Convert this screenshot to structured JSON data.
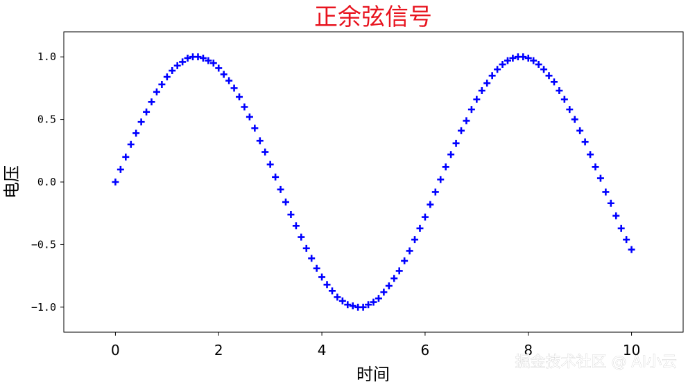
{
  "chart_data": {
    "type": "scatter",
    "title": "正余弦信号",
    "xlabel": "时间",
    "ylabel": "电压",
    "marker": "+",
    "color": "#0000ff",
    "title_color": "#e8141f",
    "xlim": [
      -1.0,
      11.0
    ],
    "ylim": [
      -1.2,
      1.2
    ],
    "xticks": [
      0,
      2,
      4,
      6,
      8,
      10
    ],
    "xtick_labels": [
      "0",
      "2",
      "4",
      "6",
      "8",
      "10"
    ],
    "yticks": [
      -1.0,
      -0.5,
      0.0,
      0.5,
      1.0
    ],
    "ytick_labels": [
      "−1.0",
      "−0.5",
      "0.0",
      "0.5",
      "1.0"
    ],
    "grid": false,
    "x": [
      0.0,
      0.1,
      0.2,
      0.3,
      0.4,
      0.5,
      0.6,
      0.7,
      0.8,
      0.9,
      1.0,
      1.1,
      1.2,
      1.3,
      1.4,
      1.5,
      1.6,
      1.7,
      1.8,
      1.9,
      2.0,
      2.1,
      2.2,
      2.3,
      2.4,
      2.5,
      2.6,
      2.7,
      2.8,
      2.9,
      3.0,
      3.1,
      3.2,
      3.3,
      3.4,
      3.5,
      3.6,
      3.7,
      3.8,
      3.9,
      4.0,
      4.1,
      4.2,
      4.3,
      4.4,
      4.5,
      4.6,
      4.7,
      4.8,
      4.9,
      5.0,
      5.1,
      5.2,
      5.3,
      5.4,
      5.5,
      5.6,
      5.7,
      5.8,
      5.9,
      6.0,
      6.1,
      6.2,
      6.3,
      6.4,
      6.5,
      6.6,
      6.7,
      6.8,
      6.9,
      7.0,
      7.1,
      7.2,
      7.3,
      7.4,
      7.5,
      7.6,
      7.7,
      7.8,
      7.9,
      8.0,
      8.1,
      8.2,
      8.3,
      8.4,
      8.5,
      8.6,
      8.7,
      8.8,
      8.9,
      9.0,
      9.1,
      9.2,
      9.3,
      9.4,
      9.5,
      9.6,
      9.7,
      9.8,
      9.9,
      10.0
    ],
    "y": [
      0.0,
      0.1,
      0.2,
      0.3,
      0.39,
      0.48,
      0.56,
      0.64,
      0.72,
      0.78,
      0.84,
      0.89,
      0.93,
      0.96,
      0.99,
      1.0,
      1.0,
      0.99,
      0.97,
      0.95,
      0.91,
      0.86,
      0.81,
      0.75,
      0.68,
      0.6,
      0.52,
      0.43,
      0.33,
      0.24,
      0.14,
      0.04,
      -0.06,
      -0.16,
      -0.26,
      -0.35,
      -0.44,
      -0.53,
      -0.61,
      -0.69,
      -0.76,
      -0.82,
      -0.87,
      -0.92,
      -0.95,
      -0.98,
      -0.99,
      -1.0,
      -1.0,
      -0.98,
      -0.96,
      -0.93,
      -0.88,
      -0.83,
      -0.77,
      -0.71,
      -0.63,
      -0.55,
      -0.46,
      -0.37,
      -0.28,
      -0.18,
      -0.08,
      0.02,
      0.12,
      0.22,
      0.31,
      0.41,
      0.49,
      0.58,
      0.66,
      0.73,
      0.79,
      0.85,
      0.9,
      0.94,
      0.97,
      0.99,
      1.0,
      1.0,
      0.99,
      0.97,
      0.94,
      0.9,
      0.85,
      0.8,
      0.73,
      0.66,
      0.58,
      0.5,
      0.41,
      0.32,
      0.22,
      0.12,
      0.03,
      -0.08,
      -0.17,
      -0.27,
      -0.37,
      -0.46,
      -0.54
    ]
  },
  "watermark": "掘金技术社区 @ AI小云"
}
